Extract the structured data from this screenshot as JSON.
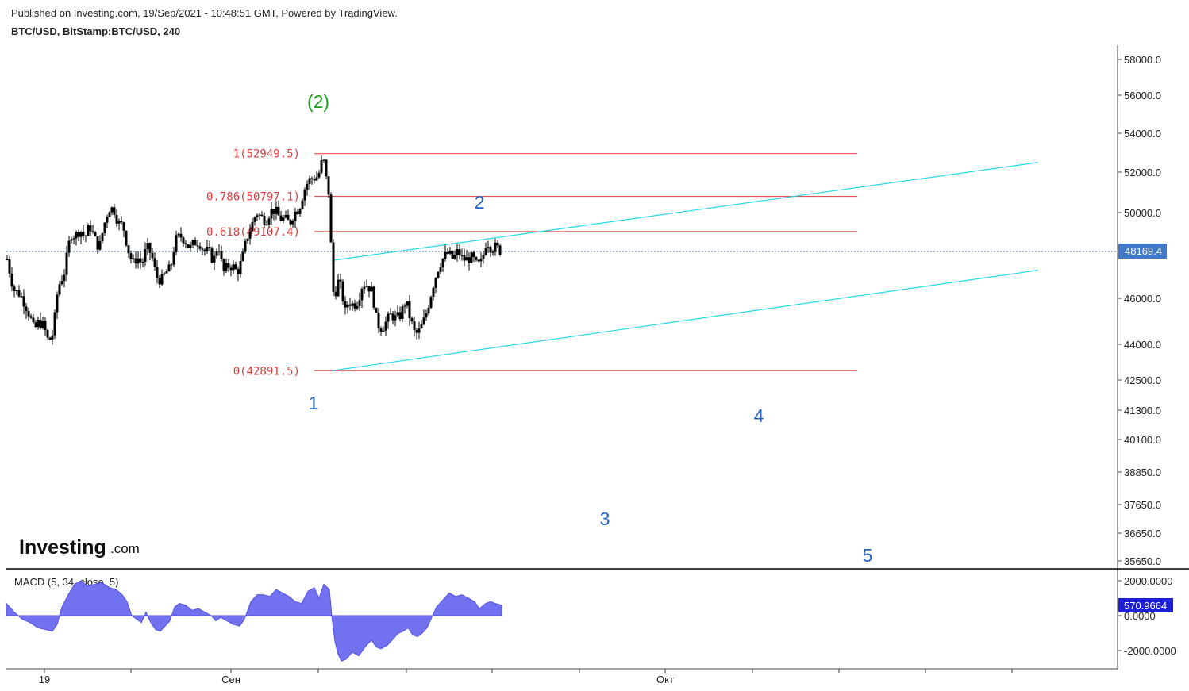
{
  "header": {
    "published": "Published on Investing.com, 19/Sep/2021 - 10:48:51 GMT, Powered by TradingView.",
    "symbol": "BTC/USD, BitStamp:BTC/USD, 240"
  },
  "brand": {
    "logo_main": "Investing",
    "logo_suffix": ".com"
  },
  "colors": {
    "candle": "#000000",
    "fib": "#e03b3b",
    "channel": "#22d7e6",
    "wave": "#2564c4",
    "wave_green": "#1aa01a",
    "macd": "#6a6af0",
    "price_tag": "#3f79c8",
    "macd_tag": "#1f1fd8"
  },
  "chart_data": [
    {
      "type": "candlestick",
      "title": "BTC/USD, BitStamp:BTC/USD, 240",
      "x_ticks": [
        "19",
        "Сен",
        "Окт"
      ],
      "y_ticks": [
        "58000.0",
        "56000.0",
        "54000.0",
        "52000.0",
        "50000.0",
        "48169.4",
        "46000.0",
        "44000.0",
        "42500.0",
        "41300.0",
        "40100.0",
        "38850.0",
        "37650.0",
        "36650.0",
        "35650.0"
      ],
      "last_price": "48169.4",
      "close_path": [
        [
          0,
          47800
        ],
        [
          8,
          46400
        ],
        [
          16,
          46200
        ],
        [
          22,
          45800
        ],
        [
          28,
          45300
        ],
        [
          34,
          44600
        ],
        [
          40,
          45000
        ],
        [
          46,
          44800
        ],
        [
          52,
          44100
        ],
        [
          58,
          44500
        ],
        [
          64,
          46500
        ],
        [
          72,
          47200
        ],
        [
          80,
          49000
        ],
        [
          86,
          48900
        ],
        [
          92,
          49200
        ],
        [
          98,
          48800
        ],
        [
          104,
          49400
        ],
        [
          110,
          48800
        ],
        [
          116,
          48300
        ],
        [
          122,
          49400
        ],
        [
          128,
          50200
        ],
        [
          134,
          50200
        ],
        [
          140,
          49500
        ],
        [
          146,
          49400
        ],
        [
          152,
          48300
        ],
        [
          158,
          47600
        ],
        [
          164,
          47900
        ],
        [
          170,
          47600
        ],
        [
          176,
          48400
        ],
        [
          182,
          48000
        ],
        [
          188,
          47000
        ],
        [
          194,
          46800
        ],
        [
          200,
          47200
        ],
        [
          206,
          47400
        ],
        [
          212,
          48700
        ],
        [
          218,
          48900
        ],
        [
          224,
          48700
        ],
        [
          230,
          48300
        ],
        [
          236,
          48600
        ],
        [
          242,
          48600
        ],
        [
          248,
          48200
        ],
        [
          254,
          48200
        ],
        [
          260,
          47700
        ],
        [
          266,
          48600
        ],
        [
          272,
          47200
        ],
        [
          278,
          47500
        ],
        [
          284,
          47500
        ],
        [
          290,
          47200
        ],
        [
          296,
          47800
        ],
        [
          302,
          48800
        ],
        [
          308,
          49400
        ],
        [
          314,
          50000
        ],
        [
          320,
          49800
        ],
        [
          326,
          49600
        ],
        [
          332,
          50100
        ],
        [
          338,
          50100
        ],
        [
          344,
          49700
        ],
        [
          350,
          49700
        ],
        [
          356,
          49500
        ],
        [
          362,
          50000
        ],
        [
          368,
          50200
        ],
        [
          374,
          51100
        ],
        [
          380,
          51600
        ],
        [
          386,
          51700
        ],
        [
          392,
          51800
        ],
        [
          398,
          52800
        ],
        [
          404,
          51100
        ],
        [
          407,
          50800
        ],
        [
          409,
          46400
        ],
        [
          413,
          46200
        ],
        [
          418,
          46900
        ],
        [
          422,
          46200
        ],
        [
          426,
          45400
        ],
        [
          430,
          45900
        ],
        [
          436,
          45700
        ],
        [
          442,
          45900
        ],
        [
          448,
          46700
        ],
        [
          454,
          46600
        ],
        [
          460,
          46300
        ],
        [
          466,
          44900
        ],
        [
          472,
          44700
        ],
        [
          478,
          45000
        ],
        [
          484,
          45300
        ],
        [
          490,
          45100
        ],
        [
          496,
          45300
        ],
        [
          502,
          45900
        ],
        [
          508,
          45100
        ],
        [
          514,
          44400
        ],
        [
          520,
          44600
        ],
        [
          526,
          45100
        ],
        [
          532,
          45900
        ],
        [
          538,
          46800
        ],
        [
          544,
          47500
        ],
        [
          550,
          47900
        ],
        [
          556,
          48100
        ],
        [
          562,
          47800
        ],
        [
          568,
          48200
        ],
        [
          574,
          47800
        ],
        [
          580,
          47800
        ],
        [
          586,
          47900
        ],
        [
          592,
          47500
        ],
        [
          598,
          47700
        ],
        [
          604,
          48700
        ],
        [
          610,
          48300
        ],
        [
          616,
          48400
        ],
        [
          622,
          48169
        ]
      ],
      "fib_levels": [
        {
          "label": "1(52949.5)",
          "value": 52949.5
        },
        {
          "label": "0.786(50797.1)",
          "value": 50797.1
        },
        {
          "label": "0.618(49107.4)",
          "value": 49107.4
        },
        {
          "label": "0(42891.5)",
          "value": 42891.5
        }
      ],
      "channel": [
        {
          "from": [
            410,
            47750
          ],
          "to": [
            1300,
            52500
          ]
        },
        {
          "from": [
            410,
            42891.5
          ],
          "to": [
            1300,
            47300
          ]
        }
      ],
      "wave_labels": [
        "(2)",
        "1",
        "2",
        "3",
        "4",
        "5"
      ]
    },
    {
      "type": "area",
      "title": "MACD (5, 34, close, 5)",
      "y_ticks": [
        "2000.0000",
        "0.0000",
        "-2000.0000"
      ],
      "last_value": "570.9664",
      "values": [
        [
          0,
          700
        ],
        [
          10,
          200
        ],
        [
          20,
          -200
        ],
        [
          30,
          -400
        ],
        [
          40,
          -700
        ],
        [
          50,
          -800
        ],
        [
          58,
          -900
        ],
        [
          64,
          -500
        ],
        [
          70,
          500
        ],
        [
          78,
          1200
        ],
        [
          86,
          1800
        ],
        [
          94,
          2000
        ],
        [
          102,
          1700
        ],
        [
          112,
          1800
        ],
        [
          120,
          1900
        ],
        [
          130,
          1600
        ],
        [
          138,
          1500
        ],
        [
          146,
          1200
        ],
        [
          152,
          800
        ],
        [
          158,
          0
        ],
        [
          164,
          -200
        ],
        [
          170,
          -400
        ],
        [
          176,
          200
        ],
        [
          182,
          -400
        ],
        [
          188,
          -800
        ],
        [
          194,
          -900
        ],
        [
          200,
          -600
        ],
        [
          206,
          -300
        ],
        [
          212,
          500
        ],
        [
          218,
          700
        ],
        [
          226,
          600
        ],
        [
          234,
          300
        ],
        [
          242,
          400
        ],
        [
          250,
          200
        ],
        [
          258,
          0
        ],
        [
          264,
          -300
        ],
        [
          270,
          -100
        ],
        [
          278,
          -300
        ],
        [
          286,
          -500
        ],
        [
          294,
          -600
        ],
        [
          300,
          -200
        ],
        [
          308,
          800
        ],
        [
          316,
          1200
        ],
        [
          324,
          1200
        ],
        [
          332,
          1100
        ],
        [
          340,
          1500
        ],
        [
          348,
          1300
        ],
        [
          356,
          1100
        ],
        [
          364,
          800
        ],
        [
          372,
          700
        ],
        [
          380,
          1400
        ],
        [
          388,
          1600
        ],
        [
          394,
          1000
        ],
        [
          400,
          1800
        ],
        [
          407,
          1500
        ],
        [
          410,
          0
        ],
        [
          414,
          -1500
        ],
        [
          418,
          -2200
        ],
        [
          422,
          -2600
        ],
        [
          428,
          -2500
        ],
        [
          436,
          -2100
        ],
        [
          444,
          -2300
        ],
        [
          452,
          -1800
        ],
        [
          460,
          -1400
        ],
        [
          466,
          -1800
        ],
        [
          472,
          -1900
        ],
        [
          480,
          -1700
        ],
        [
          486,
          -1400
        ],
        [
          494,
          -1000
        ],
        [
          500,
          -900
        ],
        [
          506,
          -700
        ],
        [
          512,
          -1100
        ],
        [
          518,
          -1200
        ],
        [
          524,
          -1000
        ],
        [
          530,
          -700
        ],
        [
          536,
          -100
        ],
        [
          542,
          500
        ],
        [
          550,
          900
        ],
        [
          558,
          1300
        ],
        [
          566,
          1100
        ],
        [
          574,
          1200
        ],
        [
          582,
          1000
        ],
        [
          590,
          800
        ],
        [
          596,
          400
        ],
        [
          604,
          700
        ],
        [
          610,
          800
        ],
        [
          616,
          700
        ],
        [
          624,
          600
        ]
      ]
    }
  ]
}
